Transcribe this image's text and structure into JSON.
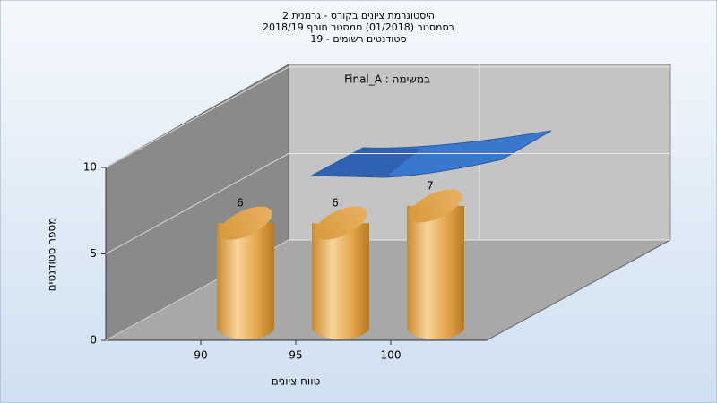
{
  "chart_data": {
    "type": "bar",
    "title": [
      "היסטוגרמת ציונים בקורס - גרמנית 2",
      "בסמסטר  (01/2018)  סמסטר חורף 2018/19",
      "סטודנטים רשומים - 19"
    ],
    "annotation": "במשימה : Final_A",
    "x_label": "טווח ציונים",
    "y_label": "מספר סטודנטים",
    "categories": [
      "90",
      "95",
      "100"
    ],
    "values": [
      6,
      6,
      7
    ],
    "color": "#e0a040",
    "ylim": [
      0,
      10
    ],
    "yticks": [
      0,
      5,
      10
    ],
    "grid": true
  }
}
